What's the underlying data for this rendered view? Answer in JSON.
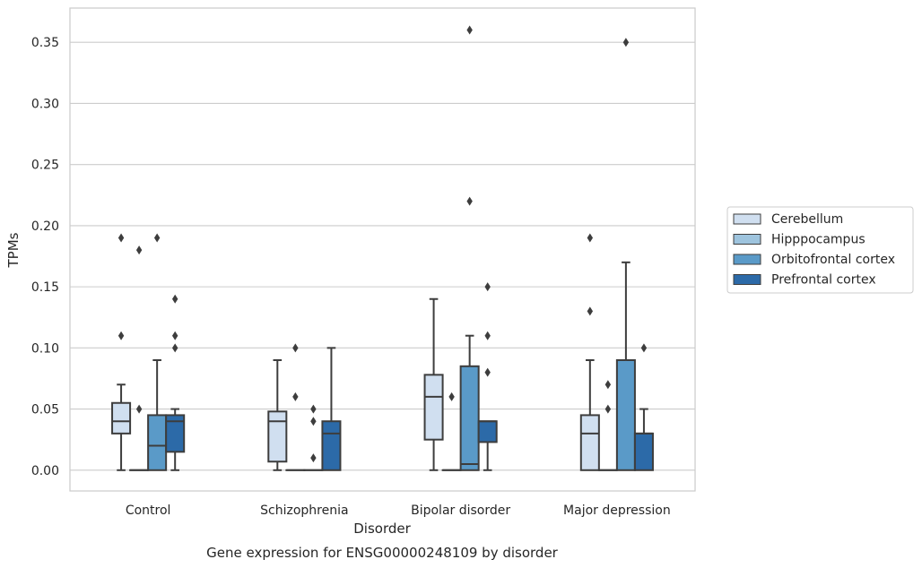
{
  "chart_data": {
    "type": "box",
    "title": "Gene expression for ENSG00000248109 by disorder",
    "xlabel": "Disorder",
    "ylabel": "TPMs",
    "ylim": [
      -0.017,
      0.378
    ],
    "yticks": [
      0.0,
      0.05,
      0.1,
      0.15,
      0.2,
      0.25,
      0.3,
      0.35
    ],
    "ytick_labels": [
      "0.00",
      "0.05",
      "0.10",
      "0.15",
      "0.20",
      "0.25",
      "0.30",
      "0.35"
    ],
    "grid": "horizontal",
    "legend_position": "right",
    "categories": [
      "Control",
      "Schizophrenia",
      "Bipolar disorder",
      "Major depression"
    ],
    "series": [
      {
        "name": "Cerebellum",
        "color": "#d0dff0",
        "boxes": [
          {
            "whislo": 0.0,
            "q1": 0.03,
            "med": 0.04,
            "q3": 0.055,
            "whishi": 0.07,
            "fliers": [
              0.11,
              0.19
            ]
          },
          {
            "whislo": 0.0,
            "q1": 0.007,
            "med": 0.04,
            "q3": 0.048,
            "whishi": 0.09,
            "fliers": []
          },
          {
            "whislo": 0.0,
            "q1": 0.025,
            "med": 0.06,
            "q3": 0.078,
            "whishi": 0.14,
            "fliers": []
          },
          {
            "whislo": 0.0,
            "q1": 0.0,
            "med": 0.03,
            "q3": 0.045,
            "whishi": 0.09,
            "fliers": [
              0.13,
              0.19
            ]
          }
        ]
      },
      {
        "name": "Hipppocampus",
        "color": "#9ec4de",
        "boxes": [
          {
            "whislo": 0.0,
            "q1": 0.0,
            "med": 0.0,
            "q3": 0.0,
            "whishi": 0.0,
            "fliers": [
              0.05,
              0.18
            ]
          },
          {
            "whislo": 0.0,
            "q1": 0.0,
            "med": 0.0,
            "q3": 0.0,
            "whishi": 0.0,
            "fliers": [
              0.06,
              0.1
            ]
          },
          {
            "whislo": 0.0,
            "q1": 0.0,
            "med": 0.0,
            "q3": 0.0,
            "whishi": 0.0,
            "fliers": [
              0.06
            ]
          },
          {
            "whislo": 0.0,
            "q1": 0.0,
            "med": 0.0,
            "q3": 0.0,
            "whishi": 0.0,
            "fliers": [
              0.05,
              0.07
            ]
          }
        ]
      },
      {
        "name": "Orbitofrontal cortex",
        "color": "#5a9ac8",
        "boxes": [
          {
            "whislo": 0.0,
            "q1": 0.0,
            "med": 0.02,
            "q3": 0.045,
            "whishi": 0.09,
            "fliers": [
              0.19
            ]
          },
          {
            "whislo": 0.0,
            "q1": 0.0,
            "med": 0.0,
            "q3": 0.0,
            "whishi": 0.0,
            "fliers": [
              0.01,
              0.04,
              0.05
            ]
          },
          {
            "whislo": 0.0,
            "q1": 0.0,
            "med": 0.005,
            "q3": 0.085,
            "whishi": 0.11,
            "fliers": [
              0.22,
              0.36
            ]
          },
          {
            "whislo": 0.0,
            "q1": 0.0,
            "med": 0.09,
            "q3": 0.09,
            "whishi": 0.17,
            "fliers": [
              0.35
            ]
          }
        ]
      },
      {
        "name": "Prefrontal cortex",
        "color": "#2c6aa8",
        "boxes": [
          {
            "whislo": 0.0,
            "q1": 0.015,
            "med": 0.04,
            "q3": 0.045,
            "whishi": 0.05,
            "fliers": [
              0.1,
              0.11,
              0.14
            ]
          },
          {
            "whislo": 0.0,
            "q1": 0.0,
            "med": 0.03,
            "q3": 0.04,
            "whishi": 0.1,
            "fliers": []
          },
          {
            "whislo": 0.0,
            "q1": 0.023,
            "med": 0.04,
            "q3": 0.04,
            "whishi": 0.04,
            "fliers": [
              0.08,
              0.11,
              0.15
            ]
          },
          {
            "whislo": 0.0,
            "q1": 0.0,
            "med": 0.03,
            "q3": 0.03,
            "whishi": 0.05,
            "fliers": [
              0.1
            ]
          }
        ]
      }
    ]
  }
}
